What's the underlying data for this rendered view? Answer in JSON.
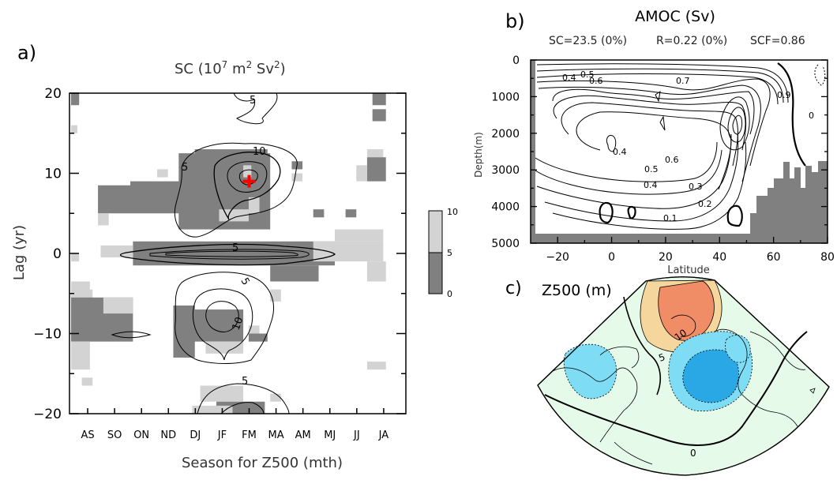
{
  "chart_data": [
    {
      "panel": "a)",
      "type": "heatmap",
      "title": "SC (10^7 m^2 Sv^2)",
      "title_parts": {
        "base": "SC (10",
        "exp1": "7",
        "mid": " m",
        "exp2": "2",
        "mid2": " Sv",
        "exp3": "2",
        "end": ")"
      },
      "xlabel": "Season for Z500 (mth)",
      "ylabel": "Lag (yr)",
      "categories": [
        "AS",
        "SO",
        "ON",
        "ND",
        "DJ",
        "JF",
        "FM",
        "MA",
        "AM",
        "MJ",
        "JJ",
        "JA"
      ],
      "yticks": [
        "20",
        "10",
        "0",
        "−10",
        "−20"
      ],
      "ylim": [
        -20,
        20
      ],
      "colorbar": {
        "ticks": [
          "10",
          "5",
          "0"
        ],
        "levels": [
          0,
          5,
          10
        ],
        "colors": [
          "#808080",
          "#d3d3d3"
        ]
      },
      "contour_labels": [
        "5",
        "10",
        "5",
        "5",
        "10",
        "5"
      ],
      "max_marker": {
        "season": "FM",
        "lag": 9,
        "color": "#ff0000"
      }
    },
    {
      "panel": "b)",
      "type": "contour",
      "title": "AMOC (Sv)",
      "stats": [
        "SC=23.5 (0%)",
        "R=0.22 (0%)",
        "SCF=0.86"
      ],
      "xlabel": "Latitude",
      "ylabel": "Depth(m)",
      "xticks": [
        "−20",
        "0",
        "20",
        "40",
        "60",
        "80"
      ],
      "yticks": [
        "0",
        "1000",
        "2000",
        "3000",
        "4000",
        "5000"
      ],
      "xlim": [
        -30,
        80
      ],
      "ylim": [
        5000,
        0
      ],
      "contour_labels": [
        "0.4",
        "0.5",
        "0.6",
        "0.7",
        "0.9",
        "0",
        "0.5",
        "0.6",
        "0.4",
        "0.3",
        "0.2",
        "0.1",
        "0.4"
      ],
      "land_color": "#808080"
    },
    {
      "panel": "c)",
      "type": "map",
      "title": "Z500 (m)",
      "contour_labels": [
        "10",
        "5",
        "0"
      ],
      "colors": {
        "ocean": "#e6fae9",
        "positive_light": "#f5d79e",
        "positive_strong": "#f08c66",
        "negative_light": "#7fdcf5",
        "negative_strong": "#2aa8e6"
      }
    }
  ]
}
